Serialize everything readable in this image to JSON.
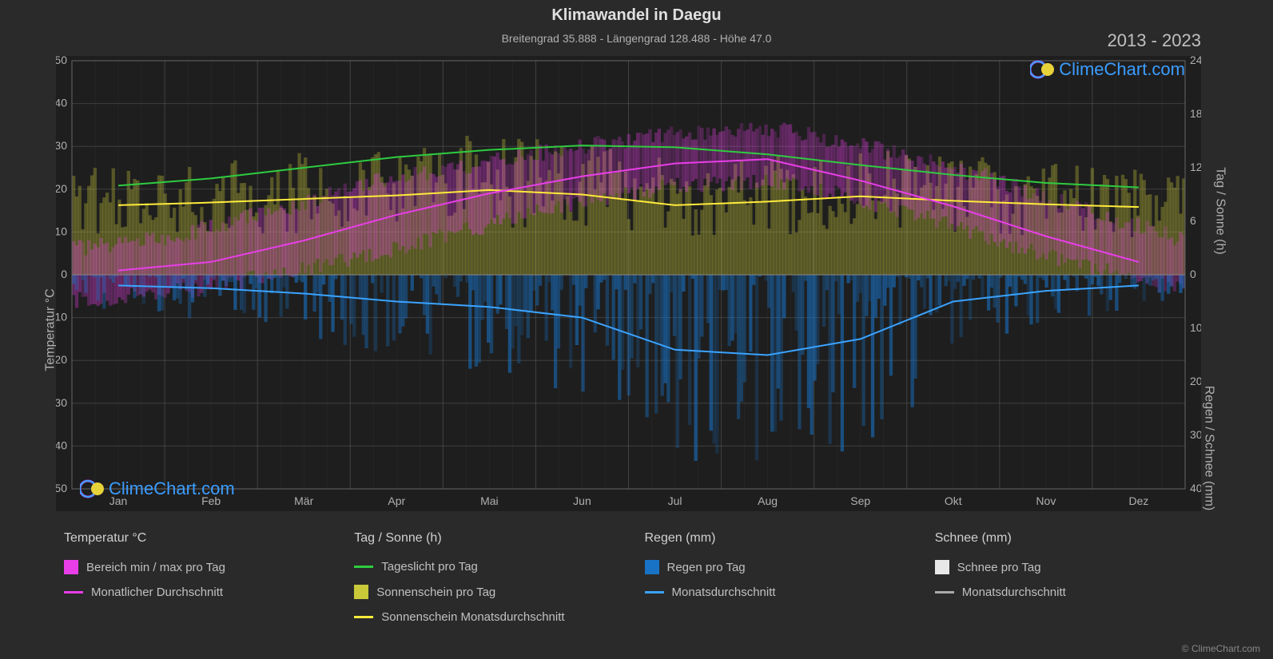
{
  "chart": {
    "title": "Klimawandel in Daegu",
    "subtitle": "Breitengrad 35.888 - Längengrad 128.488 - Höhe 47.0",
    "year_range": "2013 - 2023",
    "copyright": "© ClimeChart.com",
    "logo_text": "ClimeChart.com",
    "background_color": "#2a2a2a",
    "plot_background": "#1e1e1e",
    "grid_color": "#555555",
    "axis_text_color": "#b0b0b0",
    "y_left": {
      "label": "Temperatur °C",
      "min": -50,
      "max": 50,
      "tick_step": 10,
      "ticks": [
        "-50",
        "-40",
        "-30",
        "-20",
        "-10",
        "0",
        "10",
        "20",
        "30",
        "40",
        "50"
      ]
    },
    "y_right_top": {
      "label": "Tag / Sonne (h)",
      "min": 0,
      "max": 24,
      "tick_step": 6,
      "ticks": [
        "0",
        "6",
        "12",
        "18",
        "24"
      ]
    },
    "y_right_bottom": {
      "label": "Regen / Schnee (mm)",
      "min": 0,
      "max": 40,
      "tick_step": 10,
      "ticks": [
        "0",
        "10",
        "20",
        "30",
        "40"
      ]
    },
    "x_axis": {
      "months": [
        "Jan",
        "Feb",
        "Mär",
        "Apr",
        "Mai",
        "Jun",
        "Jul",
        "Aug",
        "Sep",
        "Okt",
        "Nov",
        "Dez"
      ]
    },
    "series": {
      "daylight": {
        "type": "line",
        "color": "#2ecc40",
        "width": 2,
        "values_hours": [
          10,
          10.8,
          12,
          13.2,
          14,
          14.5,
          14.3,
          13.5,
          12.3,
          11.2,
          10.3,
          9.8
        ]
      },
      "sunshine_avg": {
        "type": "line",
        "color": "#ffeb3b",
        "width": 2,
        "values_hours": [
          7.8,
          8.1,
          8.5,
          8.9,
          9.5,
          9.0,
          7.8,
          8.2,
          8.8,
          8.3,
          7.9,
          7.6
        ]
      },
      "temp_avg": {
        "type": "line",
        "color": "#e83ee8",
        "width": 2,
        "values_c": [
          1,
          3,
          8,
          14,
          19,
          23,
          26,
          27,
          22,
          16,
          9,
          3
        ]
      },
      "rain_avg": {
        "type": "line",
        "color": "#3ba3ff",
        "width": 2,
        "values_mm": [
          2,
          2.5,
          3.5,
          5,
          6,
          8,
          14,
          15,
          12,
          5,
          3,
          2
        ]
      },
      "temp_range_band": {
        "type": "band",
        "color": "#e83ee8",
        "opacity": 0.45,
        "low_c": [
          -6,
          -4,
          0,
          5,
          11,
          17,
          21,
          22,
          16,
          9,
          2,
          -4
        ],
        "high_c": [
          6,
          9,
          15,
          22,
          26,
          30,
          33,
          34,
          29,
          23,
          15,
          8
        ]
      },
      "sunshine_band": {
        "type": "band",
        "color": "#c9c93a",
        "opacity": 0.55,
        "low_h": [
          0,
          0,
          0,
          0,
          0,
          0,
          0,
          0,
          0,
          0,
          0,
          0
        ],
        "high_h": [
          8,
          8.5,
          9,
          9.5,
          10.5,
          10,
          8.5,
          9,
          9.5,
          8.8,
          8.2,
          8
        ]
      },
      "rain_bars": {
        "type": "bars",
        "color": "#1873c7",
        "opacity": 0.5,
        "monthly_max_mm": [
          6,
          8,
          10,
          15,
          18,
          25,
          35,
          38,
          30,
          12,
          8,
          5
        ]
      }
    },
    "legend": {
      "groups": [
        {
          "header": "Temperatur °C",
          "items": [
            {
              "kind": "square",
              "color": "#e83ee8",
              "label": "Bereich min / max pro Tag"
            },
            {
              "kind": "line",
              "color": "#e83ee8",
              "label": "Monatlicher Durchschnitt"
            }
          ]
        },
        {
          "header": "Tag / Sonne (h)",
          "items": [
            {
              "kind": "line",
              "color": "#2ecc40",
              "label": "Tageslicht pro Tag"
            },
            {
              "kind": "square",
              "color": "#c9c93a",
              "label": "Sonnenschein pro Tag"
            },
            {
              "kind": "line",
              "color": "#ffeb3b",
              "label": "Sonnenschein Monatsdurchschnitt"
            }
          ]
        },
        {
          "header": "Regen (mm)",
          "items": [
            {
              "kind": "square",
              "color": "#1873c7",
              "label": "Regen pro Tag"
            },
            {
              "kind": "line",
              "color": "#3ba3ff",
              "label": "Monatsdurchschnitt"
            }
          ]
        },
        {
          "header": "Schnee (mm)",
          "items": [
            {
              "kind": "square",
              "color": "#e8e8e8",
              "label": "Schnee pro Tag"
            },
            {
              "kind": "line",
              "color": "#aaaaaa",
              "label": "Monatsdurchschnitt"
            }
          ]
        }
      ]
    }
  }
}
